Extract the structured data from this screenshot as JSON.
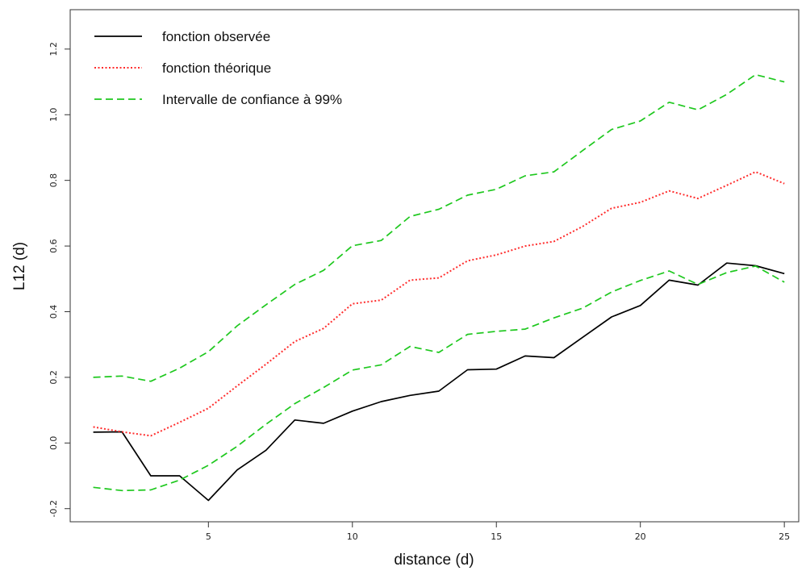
{
  "chart_data": {
    "type": "line",
    "title": "",
    "xlabel": "distance (d)",
    "ylabel": "L12 (d)",
    "xlim": [
      0.2,
      25.5
    ],
    "ylim": [
      -0.24,
      1.32
    ],
    "xticks": [
      5,
      10,
      15,
      20,
      25
    ],
    "yticks": [
      -0.2,
      0.0,
      0.2,
      0.4,
      0.6,
      0.8,
      1.0,
      1.2
    ],
    "ytick_labels": [
      "-0.2",
      "0.0",
      "0.2",
      "0.4",
      "0.6",
      "0.8",
      "1.0",
      "1.2"
    ],
    "grid": false,
    "legend_position": "top-left",
    "x": [
      1,
      2,
      3,
      4,
      5,
      6,
      7,
      8,
      9,
      10,
      11,
      12,
      13,
      14,
      15,
      16,
      17,
      18,
      19,
      20,
      21,
      22,
      23,
      24,
      25
    ],
    "series": [
      {
        "name": "fonction observée",
        "color": "#000000",
        "dash": "solid",
        "values": [
          0.033,
          0.034,
          -0.1,
          -0.1,
          -0.175,
          -0.082,
          -0.022,
          0.07,
          0.06,
          0.097,
          0.126,
          0.145,
          0.158,
          0.223,
          0.225,
          0.265,
          0.26,
          0.322,
          0.384,
          0.419,
          0.496,
          0.481,
          0.548,
          0.54,
          0.516
        ]
      },
      {
        "name": "fonction théorique",
        "color": "#ff2d2d",
        "dash": "dotted",
        "values": [
          0.049,
          0.034,
          0.022,
          0.063,
          0.106,
          0.174,
          0.24,
          0.309,
          0.349,
          0.424,
          0.435,
          0.496,
          0.503,
          0.555,
          0.573,
          0.6,
          0.614,
          0.66,
          0.715,
          0.733,
          0.768,
          0.745,
          0.785,
          0.826,
          0.79
        ]
      },
      {
        "name": "Intervalle de confiance à 99%",
        "color": "#1ec81e",
        "dash": "dashed",
        "band": "upper",
        "values": [
          0.2,
          0.204,
          0.188,
          0.228,
          0.278,
          0.357,
          0.421,
          0.483,
          0.526,
          0.601,
          0.617,
          0.69,
          0.712,
          0.755,
          0.773,
          0.814,
          0.826,
          0.891,
          0.955,
          0.981,
          1.038,
          1.015,
          1.062,
          1.122,
          1.1
        ]
      },
      {
        "name": "",
        "color": "#1ec81e",
        "dash": "dashed",
        "band": "lower",
        "values": [
          -0.135,
          -0.145,
          -0.143,
          -0.113,
          -0.068,
          -0.01,
          0.057,
          0.12,
          0.169,
          0.222,
          0.238,
          0.294,
          0.276,
          0.331,
          0.34,
          0.347,
          0.381,
          0.411,
          0.46,
          0.495,
          0.524,
          0.483,
          0.519,
          0.539,
          0.49
        ]
      }
    ]
  }
}
